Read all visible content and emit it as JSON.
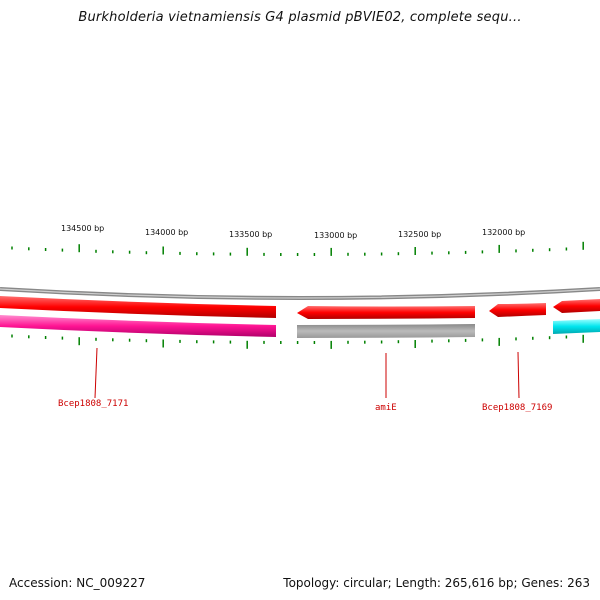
{
  "title": "Burkholderia vietnamiensis G4 plasmid pBVIE02, complete sequ...",
  "ticks": [
    "134500 bp",
    "134000 bp",
    "133500 bp",
    "133000 bp",
    "132500 bp",
    "132000 bp"
  ],
  "genes": [
    {
      "label": "Bcep1808_7171"
    },
    {
      "label": "amiE"
    },
    {
      "label": "Bcep1808_7169"
    }
  ],
  "footer": {
    "accession": "Accession: NC_009227",
    "summary": "Topology: circular; Length: 265,616 bp; Genes: 263"
  },
  "colors": {
    "forward": "#ff0000",
    "reverse": "#ff1493",
    "grey": "#bbbbbb",
    "cyan": "#00e5ee",
    "tick": "#008000",
    "label": "#cc0000"
  }
}
